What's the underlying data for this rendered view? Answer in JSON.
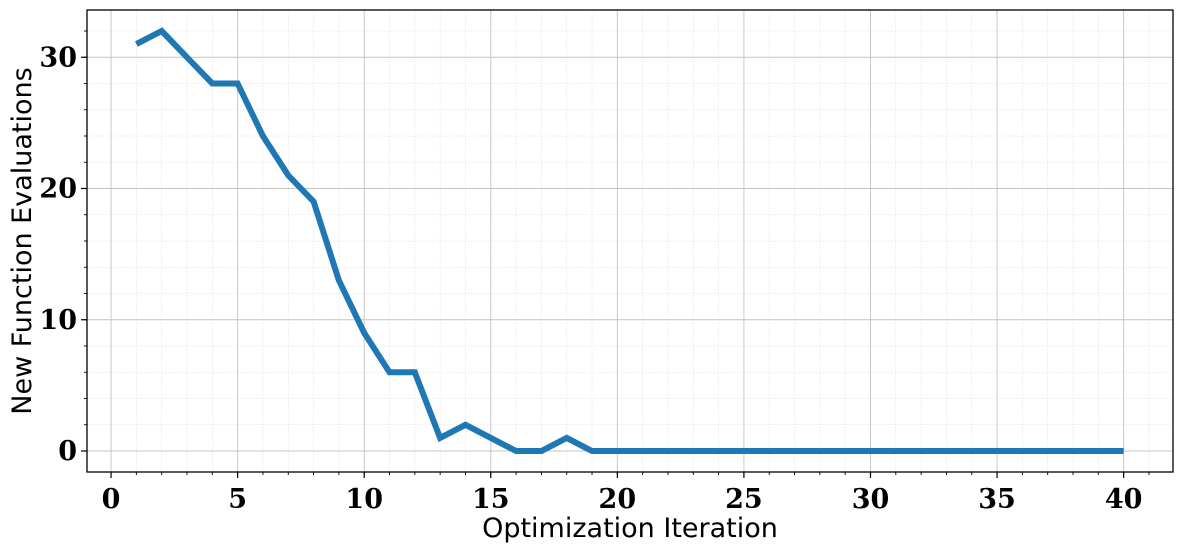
{
  "chart_data": {
    "type": "line",
    "xlabel": "Optimization Iteration",
    "ylabel": "New Function Evaluations",
    "xlim": [
      -0.95,
      41.95
    ],
    "ylim": [
      -1.6,
      33.6
    ],
    "xticks": [
      0,
      5,
      10,
      15,
      20,
      25,
      30,
      35,
      40
    ],
    "yticks": [
      0,
      10,
      20,
      30
    ],
    "x_minor_step": 1,
    "y_minor_step": 2,
    "grid": true,
    "legend": "none",
    "series": [
      {
        "color": "#1f77b4",
        "x": [
          1,
          2,
          3,
          4,
          5,
          6,
          7,
          8,
          9,
          10,
          11,
          12,
          13,
          14,
          15,
          16,
          17,
          18,
          19,
          20,
          21,
          22,
          23,
          24,
          25,
          26,
          27,
          28,
          29,
          30,
          31,
          32,
          33,
          34,
          35,
          36,
          37,
          38,
          39,
          40
        ],
        "y": [
          31,
          32,
          30,
          28,
          28,
          24,
          21,
          19,
          13,
          9,
          6,
          6,
          1,
          2,
          1,
          0,
          0,
          1,
          0,
          0,
          0,
          0,
          0,
          0,
          0,
          0,
          0,
          0,
          0,
          0,
          0,
          0,
          0,
          0,
          0,
          0,
          0,
          0,
          0,
          0
        ]
      }
    ]
  }
}
